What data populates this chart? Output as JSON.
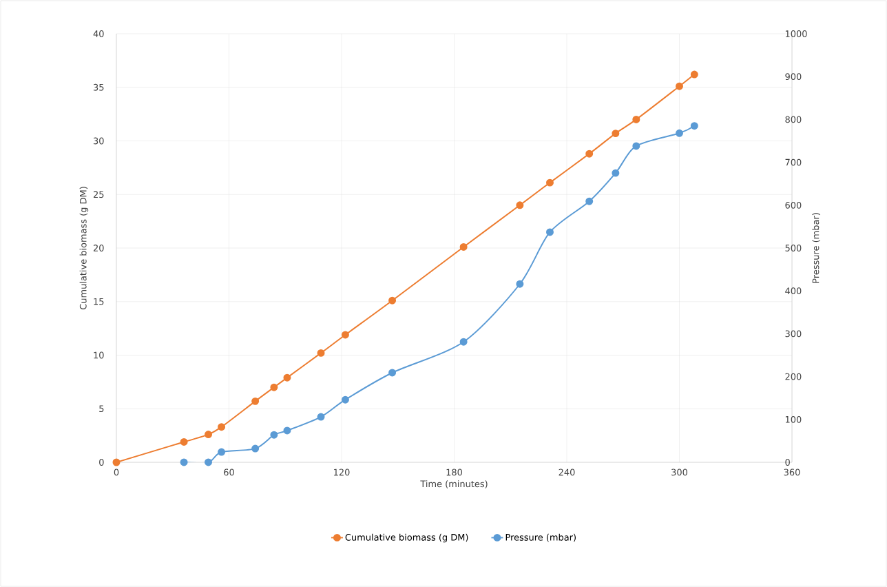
{
  "chart_data": {
    "type": "line",
    "xlabel": "Time (minutes)",
    "ylabel": "Cumulative biomass (g DM)",
    "y2label": "Pressure (mbar)",
    "xlim": [
      0,
      360
    ],
    "xticks": [
      0,
      60,
      120,
      180,
      240,
      300,
      360
    ],
    "ylim": [
      0,
      40
    ],
    "yticks": [
      0,
      5,
      10,
      15,
      20,
      25,
      30,
      35,
      40
    ],
    "y2lim": [
      0,
      1000
    ],
    "y2ticks": [
      0,
      100,
      200,
      300,
      400,
      500,
      600,
      700,
      800,
      900,
      1000
    ],
    "grid": true,
    "legend": "bottom",
    "marker": "circle",
    "line_style": "solid",
    "series": [
      {
        "name": "Cumulative biomass (g DM)",
        "color": "#ed7d31",
        "x": [
          0,
          36,
          49,
          56,
          74,
          84,
          91,
          109,
          122,
          147,
          185,
          215,
          231,
          252,
          266,
          277,
          300,
          308
        ],
        "values": [
          0,
          1.9,
          2.6,
          3.3,
          5.7,
          7.0,
          7.9,
          10.2,
          11.9,
          15.1,
          20.1,
          24.0,
          26.1,
          28.8,
          30.7,
          32.0,
          35.1,
          36.2
        ]
      },
      {
        "name": "Pressure (mbar)",
        "color": "#5b9bd5",
        "axis": "y2",
        "x": [
          36,
          49,
          56,
          74,
          84,
          91,
          109,
          122,
          147,
          185,
          215,
          231,
          252,
          266,
          277,
          300,
          308
        ],
        "values": [
          0,
          0,
          24,
          32,
          64,
          74,
          106,
          146,
          209,
          281,
          416,
          537,
          609,
          675,
          738,
          768,
          785
        ]
      }
    ]
  }
}
